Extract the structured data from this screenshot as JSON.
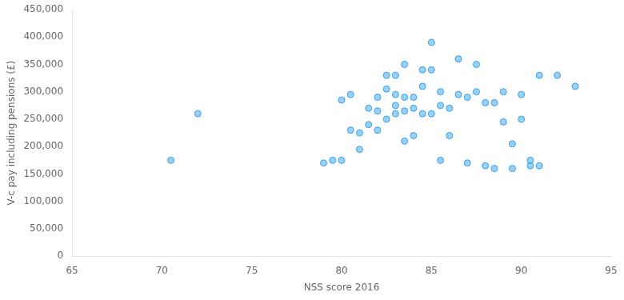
{
  "chart_data": {
    "type": "scatter",
    "x": [
      70.5,
      72.0,
      79.0,
      79.5,
      80.0,
      80.0,
      80.5,
      80.5,
      81.0,
      81.0,
      81.5,
      81.5,
      82.0,
      82.0,
      82.0,
      82.5,
      82.5,
      82.5,
      83.0,
      83.0,
      83.0,
      83.0,
      83.5,
      83.5,
      83.5,
      83.5,
      84.0,
      84.0,
      84.0,
      84.5,
      84.5,
      84.5,
      85.0,
      85.0,
      85.0,
      85.5,
      85.5,
      85.5,
      86.0,
      86.0,
      86.5,
      86.5,
      87.0,
      87.0,
      87.5,
      87.5,
      88.0,
      88.0,
      88.5,
      88.5,
      89.0,
      89.0,
      89.5,
      89.5,
      90.0,
      90.0,
      90.5,
      90.5,
      91.0,
      91.0,
      92.0,
      93.0
    ],
    "values": [
      175000,
      260000,
      170000,
      175000,
      175000,
      285000,
      295000,
      230000,
      225000,
      195000,
      270000,
      240000,
      290000,
      265000,
      230000,
      330000,
      305000,
      250000,
      330000,
      295000,
      275000,
      260000,
      350000,
      290000,
      265000,
      210000,
      290000,
      270000,
      220000,
      340000,
      310000,
      260000,
      390000,
      340000,
      260000,
      300000,
      275000,
      175000,
      270000,
      220000,
      360000,
      295000,
      290000,
      170000,
      350000,
      300000,
      280000,
      165000,
      280000,
      160000,
      300000,
      245000,
      205000,
      160000,
      295000,
      250000,
      175000,
      165000,
      330000,
      165000,
      330000,
      310000
    ],
    "xlabel": "NSS score 2016",
    "ylabel": "V-c pay including pensions (£)",
    "xlim": [
      65,
      95
    ],
    "ylim": [
      0,
      450000
    ],
    "xticks": [
      65,
      70,
      75,
      80,
      85,
      90,
      95
    ],
    "yticks": [
      0,
      {
        "value": 50000,
        "label": "50,000"
      },
      {
        "value": 100000,
        "label": "100,000"
      },
      {
        "value": 150000,
        "label": "150,000"
      },
      {
        "value": 200000,
        "label": "200,000"
      },
      {
        "value": 250000,
        "label": "250,000"
      },
      {
        "value": 300000,
        "label": "300,000"
      },
      {
        "value": 350000,
        "label": "350,000"
      },
      {
        "value": 400000,
        "label": "400,000"
      },
      {
        "value": 450000,
        "label": "450,000"
      }
    ],
    "grid": false
  }
}
